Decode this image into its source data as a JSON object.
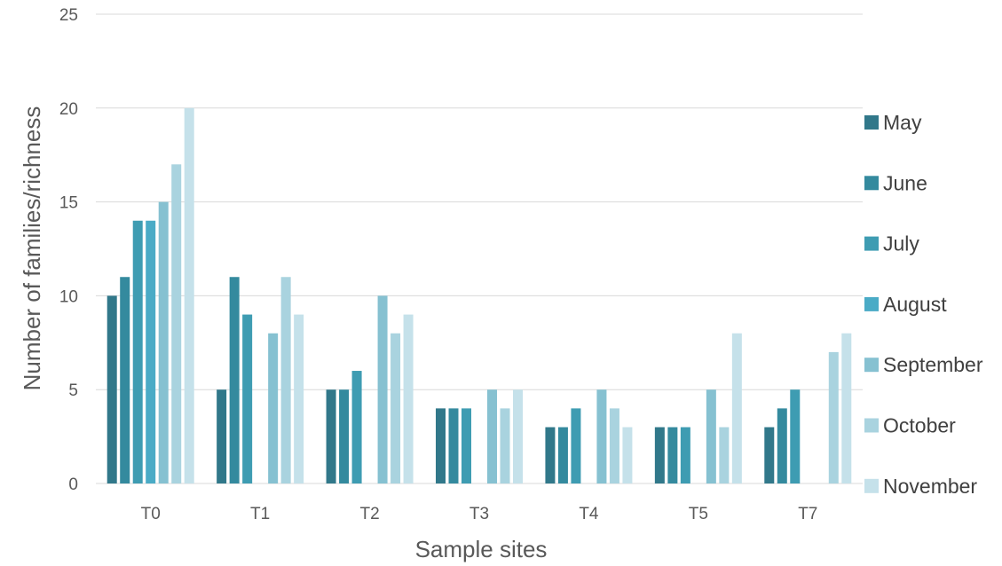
{
  "chart_data": {
    "type": "bar",
    "title": "",
    "xlabel": "Sample sites",
    "ylabel": "Number of families/richness",
    "ylim": [
      0,
      25
    ],
    "yticks": [
      0,
      5,
      10,
      15,
      20,
      25
    ],
    "grid": "horizontal",
    "legend_position": "right",
    "categories": [
      "T0",
      "T1",
      "T2",
      "T3",
      "T4",
      "T5",
      "T7"
    ],
    "series": [
      {
        "name": "May",
        "color": "#31788A",
        "values": [
          10,
          5,
          5,
          4,
          3,
          3,
          3
        ]
      },
      {
        "name": "June",
        "color": "#348A9E",
        "values": [
          11,
          11,
          5,
          4,
          3,
          3,
          4
        ]
      },
      {
        "name": "July",
        "color": "#3E9CB2",
        "values": [
          14,
          9,
          6,
          4,
          4,
          3,
          5
        ]
      },
      {
        "name": "August",
        "color": "#4AABC6",
        "values": [
          14,
          0,
          0,
          0,
          0,
          0,
          0
        ]
      },
      {
        "name": "September",
        "color": "#86C1D1",
        "values": [
          15,
          8,
          10,
          5,
          5,
          5,
          0
        ]
      },
      {
        "name": "October",
        "color": "#A9D3DF",
        "values": [
          17,
          11,
          8,
          4,
          4,
          3,
          7
        ]
      },
      {
        "name": "November",
        "color": "#C5E1EA",
        "values": [
          20,
          9,
          9,
          5,
          3,
          8,
          8
        ]
      }
    ]
  }
}
